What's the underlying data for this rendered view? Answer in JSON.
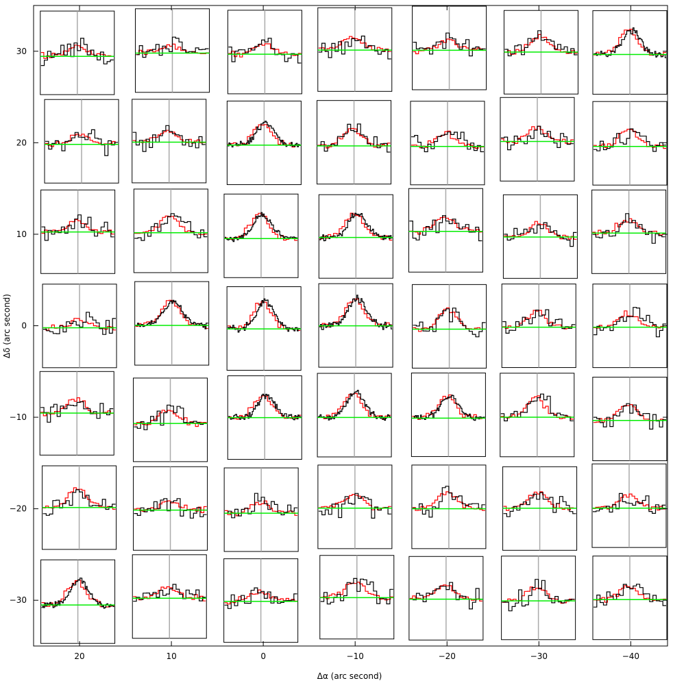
{
  "chart_data": {
    "type": "line",
    "title": "",
    "xlabel": "Δα (arc second)",
    "ylabel": "Δδ (arc second)",
    "xlim": [
      25,
      -44
    ],
    "ylim": [
      -35,
      35
    ],
    "x_ticks": [
      20,
      10,
      0,
      -10,
      -20,
      -30,
      -40
    ],
    "x_tick_labels": [
      "20",
      "10",
      "0",
      "−10",
      "−20",
      "−30",
      "−40"
    ],
    "y_ticks": [
      30,
      20,
      10,
      0,
      -10,
      -20,
      -30
    ],
    "y_tick_labels": [
      "30",
      "20",
      "10",
      "0",
      "−10",
      "−20",
      "−30"
    ],
    "grid_columns_offset": [
      20,
      10,
      0,
      -10,
      -20,
      -30,
      -40
    ],
    "grid_rows_offset": [
      30,
      20,
      10,
      0,
      -10,
      -20,
      -30
    ],
    "series": [
      {
        "color": "#000000",
        "role": "observed spectrum (histogram)"
      },
      {
        "color": "#ff0000",
        "role": "model / comparison spectrum (histogram)"
      },
      {
        "color": "#00ee00",
        "role": "baseline"
      },
      {
        "color": "#aaaaaa",
        "role": "systemic velocity marker"
      }
    ],
    "spectra_peak_amplitude": [
      [
        0.4,
        0.3,
        0.4,
        0.5,
        0.4,
        0.6,
        0.9
      ],
      [
        0.4,
        0.4,
        0.8,
        0.7,
        0.5,
        0.5,
        0.6
      ],
      [
        0.4,
        0.6,
        0.9,
        0.9,
        0.6,
        0.5,
        0.5
      ],
      [
        0.3,
        0.9,
        1.0,
        1.0,
        0.7,
        0.6,
        0.5
      ],
      [
        0.5,
        0.5,
        0.8,
        0.9,
        0.8,
        0.7,
        0.6
      ],
      [
        0.7,
        0.3,
        0.4,
        0.5,
        0.6,
        0.6,
        0.5
      ],
      [
        0.9,
        0.4,
        0.4,
        0.6,
        0.5,
        0.5,
        0.5
      ]
    ],
    "grid": false,
    "legend": "none"
  },
  "colors": {
    "observed": "#000000",
    "model": "#ff0000",
    "baseline": "#00ee00",
    "center_marker": "#aaaaaa"
  }
}
